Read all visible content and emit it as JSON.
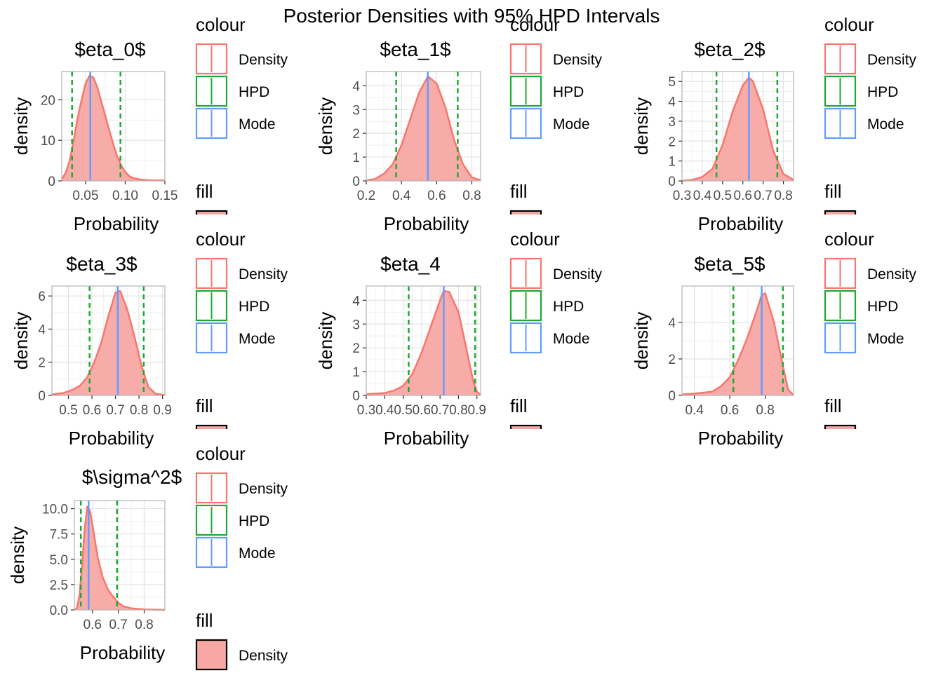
{
  "figure": {
    "title": "Posterior Densities with 95% HPD Intervals",
    "colors": {
      "density": "#F8766D",
      "density_fill": "#F8A8A4",
      "hpd": "#1FA832",
      "mode": "#619CFF",
      "grid": "#E3E3E3",
      "panel_border": "#B5B5B5"
    }
  },
  "legend": {
    "colour_title": "colour",
    "fill_title": "fill",
    "colour_items": [
      "Density",
      "HPD",
      "Mode"
    ],
    "fill_items": [
      "Density"
    ]
  },
  "chart_data": [
    {
      "type": "area",
      "title": "$\beta_0$",
      "xlabel": "Probability",
      "ylabel": "density",
      "xlim": [
        0.02,
        0.15
      ],
      "ylim": [
        0,
        27
      ],
      "xticks": [
        0.05,
        0.1,
        0.15
      ],
      "xtick_labels": [
        "0.05",
        "0.10",
        "0.15"
      ],
      "yticks": [
        0,
        10,
        20
      ],
      "ytick_labels": [
        "0",
        "10",
        "20"
      ],
      "mode": 0.056,
      "hpd": [
        0.033,
        0.094
      ],
      "x": [
        0.02,
        0.025,
        0.03,
        0.035,
        0.04,
        0.045,
        0.05,
        0.055,
        0.06,
        0.065,
        0.07,
        0.075,
        0.08,
        0.085,
        0.09,
        0.095,
        0.1,
        0.105,
        0.11,
        0.12,
        0.13,
        0.14,
        0.15
      ],
      "y": [
        0.4,
        2.0,
        5.0,
        10.0,
        15.5,
        20.0,
        24.0,
        26.0,
        25.5,
        23.0,
        19.5,
        16.0,
        12.5,
        9.0,
        6.0,
        3.8,
        2.2,
        1.2,
        0.7,
        0.3,
        0.15,
        0.1,
        0.1
      ]
    },
    {
      "type": "area",
      "title": "$\beta_1$",
      "xlabel": "Probability",
      "ylabel": "density",
      "xlim": [
        0.2,
        0.85
      ],
      "ylim": [
        0,
        4.6
      ],
      "xticks": [
        0.2,
        0.4,
        0.6,
        0.8
      ],
      "xtick_labels": [
        "0.2",
        "0.4",
        "0.6",
        "0.8"
      ],
      "yticks": [
        0,
        1,
        2,
        3,
        4
      ],
      "ytick_labels": [
        "0",
        "1",
        "2",
        "3",
        "4"
      ],
      "mode": 0.55,
      "hpd": [
        0.37,
        0.72
      ],
      "x": [
        0.2,
        0.25,
        0.3,
        0.35,
        0.4,
        0.45,
        0.5,
        0.55,
        0.6,
        0.65,
        0.7,
        0.75,
        0.8,
        0.85
      ],
      "y": [
        0.02,
        0.08,
        0.3,
        0.7,
        1.5,
        2.6,
        3.7,
        4.4,
        4.1,
        3.1,
        1.7,
        0.7,
        0.15,
        0.02
      ]
    },
    {
      "type": "area",
      "title": "$\beta_2$",
      "xlabel": "Probability",
      "ylabel": "density",
      "xlim": [
        0.3,
        0.85
      ],
      "ylim": [
        0,
        5.5
      ],
      "xticks": [
        0.3,
        0.4,
        0.5,
        0.6,
        0.7,
        0.8
      ],
      "xtick_labels": [
        "0.3",
        "0.4",
        "0.5",
        "0.6",
        "0.7",
        "0.8"
      ],
      "yticks": [
        0,
        1,
        2,
        3,
        4,
        5
      ],
      "ytick_labels": [
        "0",
        "1",
        "2",
        "3",
        "4",
        "5"
      ],
      "mode": 0.63,
      "hpd": [
        0.47,
        0.77
      ],
      "x": [
        0.3,
        0.35,
        0.4,
        0.45,
        0.5,
        0.55,
        0.6,
        0.63,
        0.65,
        0.7,
        0.75,
        0.8,
        0.85
      ],
      "y": [
        0.0,
        0.05,
        0.2,
        0.6,
        1.8,
        3.5,
        4.8,
        5.2,
        5.0,
        3.6,
        1.5,
        0.35,
        0.05
      ]
    },
    {
      "type": "area",
      "title": "$\beta_3$",
      "xlabel": "Probability",
      "ylabel": "density",
      "xlim": [
        0.43,
        0.91
      ],
      "ylim": [
        0,
        6.6
      ],
      "xticks": [
        0.5,
        0.6,
        0.7,
        0.8,
        0.9
      ],
      "xtick_labels": [
        "0.5",
        "0.6",
        "0.7",
        "0.8",
        "0.9"
      ],
      "yticks": [
        0,
        2,
        4,
        6
      ],
      "ytick_labels": [
        "0",
        "2",
        "4",
        "6"
      ],
      "mode": 0.71,
      "hpd": [
        0.59,
        0.82
      ],
      "x": [
        0.43,
        0.48,
        0.52,
        0.55,
        0.58,
        0.61,
        0.64,
        0.67,
        0.7,
        0.72,
        0.75,
        0.78,
        0.81,
        0.84,
        0.87,
        0.91
      ],
      "y": [
        0.05,
        0.15,
        0.35,
        0.6,
        1.1,
        2.0,
        3.2,
        4.8,
        6.2,
        6.3,
        5.2,
        3.6,
        1.8,
        0.5,
        0.1,
        0.02
      ]
    },
    {
      "type": "area",
      "title": "$\beta_4",
      "xlabel": "Probability",
      "ylabel": "density",
      "xlim": [
        0.3,
        0.92
      ],
      "ylim": [
        0,
        4.6
      ],
      "xticks": [
        0.3,
        0.4,
        0.5,
        0.6,
        0.7,
        0.8,
        0.9
      ],
      "xtick_labels": [
        "0.3",
        "0.4",
        "0.5",
        "0.6",
        "0.7",
        "0.8",
        "0.9"
      ],
      "yticks": [
        0,
        1,
        2,
        3,
        4
      ],
      "ytick_labels": [
        "0",
        "1",
        "2",
        "3",
        "4"
      ],
      "mode": 0.72,
      "hpd": [
        0.53,
        0.89
      ],
      "x": [
        0.3,
        0.4,
        0.45,
        0.5,
        0.55,
        0.6,
        0.65,
        0.7,
        0.72,
        0.75,
        0.8,
        0.85,
        0.88,
        0.9,
        0.92
      ],
      "y": [
        0.05,
        0.1,
        0.2,
        0.4,
        0.9,
        1.8,
        2.9,
        4.0,
        4.4,
        4.35,
        3.5,
        1.7,
        0.6,
        0.15,
        0.02
      ]
    },
    {
      "type": "area",
      "title": "$\beta_5$",
      "xlabel": "Probability",
      "ylabel": "density",
      "xlim": [
        0.33,
        0.96
      ],
      "ylim": [
        0,
        6.0
      ],
      "xticks": [
        0.4,
        0.6,
        0.8
      ],
      "xtick_labels": [
        "0.4",
        "0.6",
        "0.8"
      ],
      "yticks": [
        0,
        2,
        4
      ],
      "ytick_labels": [
        "0",
        "2",
        "4"
      ],
      "mode": 0.78,
      "hpd": [
        0.62,
        0.9
      ],
      "x": [
        0.33,
        0.4,
        0.5,
        0.55,
        0.6,
        0.65,
        0.7,
        0.75,
        0.78,
        0.8,
        0.85,
        0.9,
        0.93,
        0.96
      ],
      "y": [
        0.05,
        0.1,
        0.2,
        0.5,
        1.0,
        2.0,
        3.2,
        4.6,
        5.5,
        5.6,
        4.0,
        1.6,
        0.3,
        0.02
      ]
    },
    {
      "type": "area",
      "title": "$\\sigma^2$",
      "xlabel": "Probability",
      "ylabel": "density",
      "xlim": [
        0.53,
        0.88
      ],
      "ylim": [
        0,
        10.8
      ],
      "xticks": [
        0.6,
        0.7,
        0.8
      ],
      "xtick_labels": [
        "0.6",
        "0.7",
        "0.8"
      ],
      "yticks": [
        0,
        2.5,
        5,
        7.5,
        10
      ],
      "ytick_labels": [
        "0.0",
        "2.5",
        "5.0",
        "7.5",
        "10.0"
      ],
      "mode": 0.585,
      "hpd": [
        0.555,
        0.695
      ],
      "x": [
        0.53,
        0.54,
        0.55,
        0.56,
        0.57,
        0.58,
        0.59,
        0.6,
        0.61,
        0.62,
        0.64,
        0.66,
        0.68,
        0.7,
        0.72,
        0.75,
        0.8,
        0.88
      ],
      "y": [
        0.0,
        0.2,
        1.5,
        4.5,
        8.0,
        10.2,
        9.8,
        8.4,
        6.8,
        5.2,
        3.2,
        2.0,
        1.3,
        0.7,
        0.35,
        0.15,
        0.05,
        0.0
      ]
    }
  ]
}
